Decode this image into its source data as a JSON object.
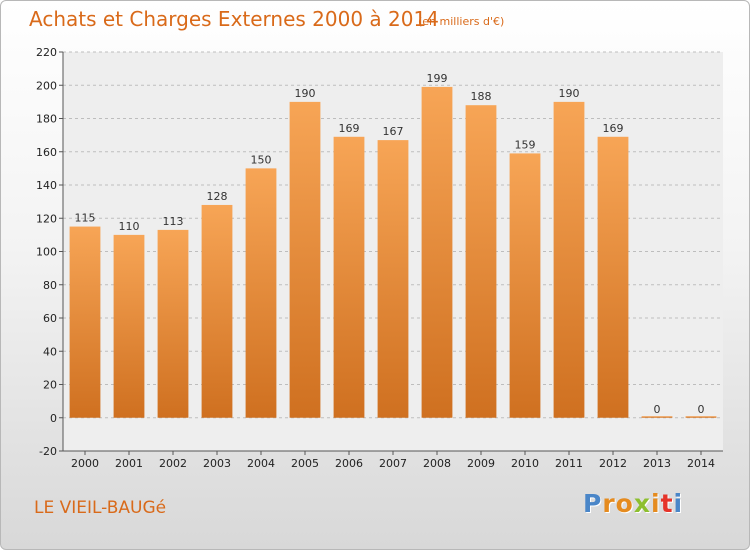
{
  "chart_data": {
    "type": "bar",
    "title": "Achats et Charges Externes 2000 à 2014",
    "subtitle": "(en milliers d'€)",
    "categories": [
      "2000",
      "2001",
      "2002",
      "2003",
      "2004",
      "2005",
      "2006",
      "2007",
      "2008",
      "2009",
      "2010",
      "2011",
      "2012",
      "2013",
      "2014"
    ],
    "values": [
      115,
      110,
      113,
      128,
      150,
      190,
      169,
      167,
      199,
      188,
      159,
      190,
      169,
      0,
      0
    ],
    "ylim": [
      -20,
      220
    ],
    "yticks": [
      -20,
      0,
      20,
      40,
      60,
      80,
      100,
      120,
      140,
      160,
      180,
      200,
      220
    ],
    "grid": true,
    "xlabel": "",
    "ylabel": ""
  },
  "colors": {
    "bar_top": "#f7a556",
    "bar_bottom": "#cf7020",
    "accent": "#d96a1a",
    "grid": "#bdbdbd"
  },
  "footer": {
    "place": "LE VIEIL-BAUGé",
    "logo_letters": [
      "P",
      "r",
      "o",
      "x",
      "i",
      "t",
      "i"
    ],
    "logo_colors": [
      "#4a86c8",
      "#e58b1f",
      "#e58b1f",
      "#8dbf2f",
      "#e58b1f",
      "#e5342a",
      "#4a86c8"
    ]
  }
}
